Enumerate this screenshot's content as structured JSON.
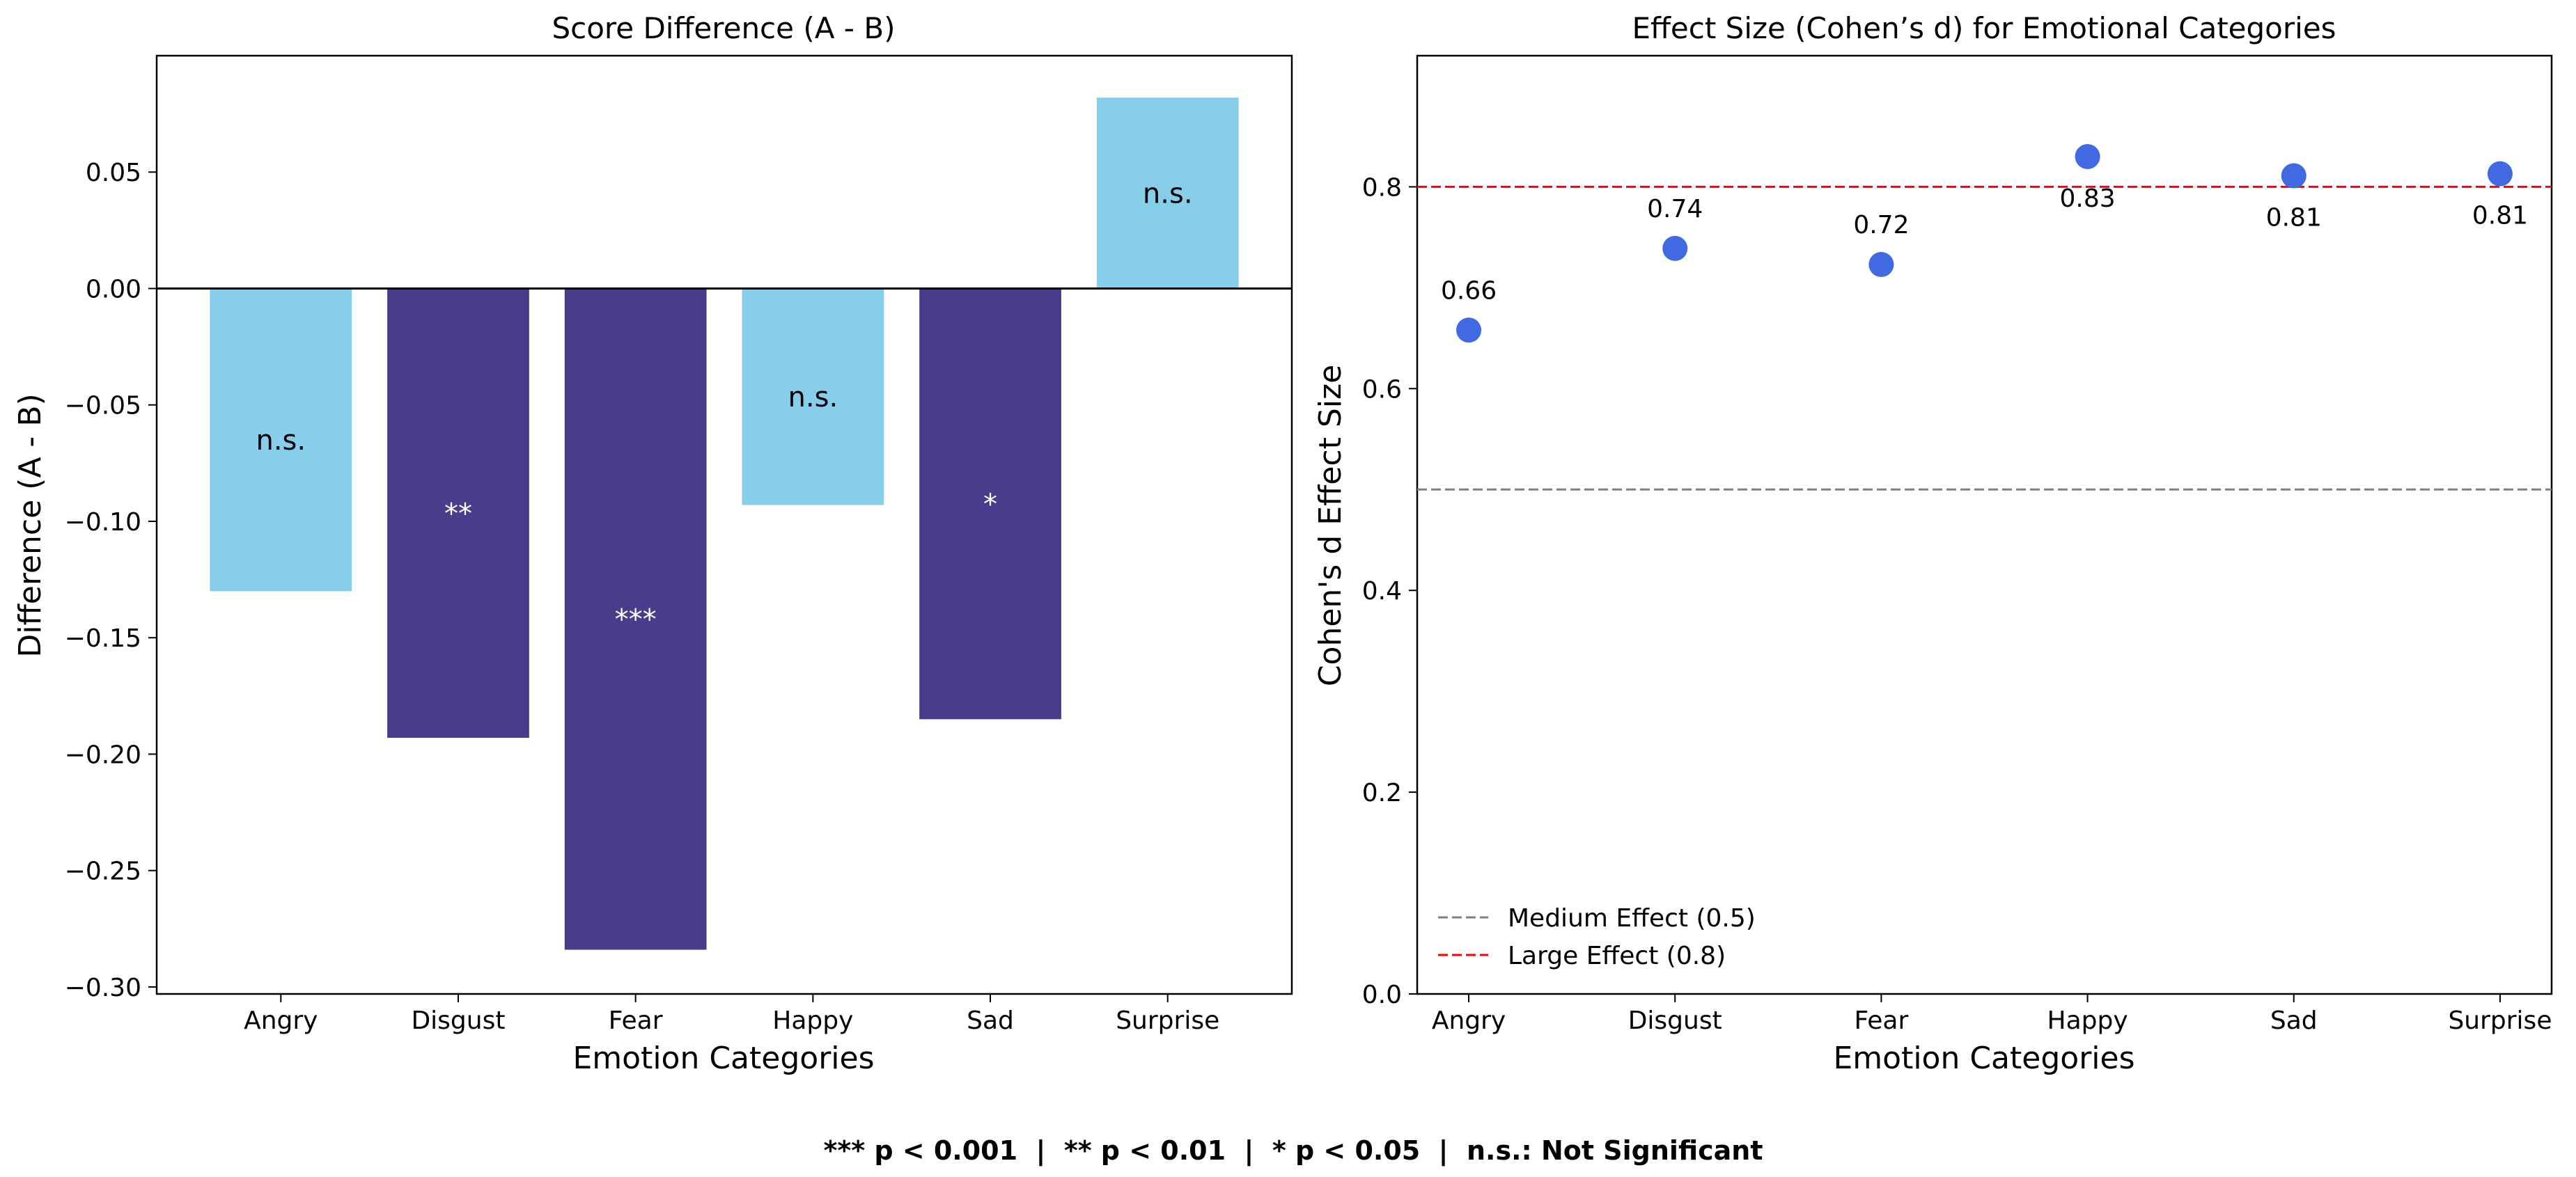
{
  "chart_data": [
    {
      "type": "bar",
      "title": "Score Difference (A - B)",
      "xlabel": "Emotion Categories",
      "ylabel": "Difference (A - B)",
      "categories": [
        "Angry",
        "Disgust",
        "Fear",
        "Happy",
        "Sad",
        "Surprise"
      ],
      "values": [
        -0.13,
        -0.193,
        -0.284,
        -0.093,
        -0.185,
        0.082
      ],
      "significance": [
        "n.s.",
        "**",
        "***",
        "n.s.",
        "*",
        "n.s."
      ],
      "ylim": [
        -0.303,
        0.1
      ],
      "yticks": [
        -0.3,
        -0.25,
        -0.2,
        -0.15,
        -0.1,
        -0.05,
        0.0,
        0.05
      ],
      "ytick_labels": [
        "−0.30",
        "−0.25",
        "−0.20",
        "−0.15",
        "−0.10",
        "−0.05",
        "0.00",
        "0.05"
      ],
      "colors": {
        "significant": "#483D8B",
        "not_significant": "#87CEEB",
        "zero_line": "#000000"
      }
    },
    {
      "type": "scatter",
      "title": "Effect Size (Cohen’s d) for Emotional Categories",
      "xlabel": "Emotion Categories",
      "ylabel": "Cohen's d Effect Size",
      "categories": [
        "Angry",
        "Disgust",
        "Fear",
        "Happy",
        "Sad",
        "Surprise"
      ],
      "values": [
        0.658,
        0.739,
        0.723,
        0.83,
        0.811,
        0.813
      ],
      "value_labels": [
        "0.66",
        "0.74",
        "0.72",
        "0.83",
        "0.81",
        "0.81"
      ],
      "label_position": [
        "above",
        "above",
        "above",
        "below",
        "below",
        "below"
      ],
      "ylim": [
        0,
        0.93
      ],
      "yticks": [
        0.0,
        0.2,
        0.4,
        0.6,
        0.8
      ],
      "ytick_labels": [
        "0.0",
        "0.2",
        "0.4",
        "0.6",
        "0.8"
      ],
      "reference_lines": [
        {
          "name": "Medium Effect (0.5)",
          "y": 0.5,
          "color": "#808080"
        },
        {
          "name": "Large Effect (0.8)",
          "y": 0.8,
          "color": "#FF0000"
        }
      ],
      "legend_position": "lower-left",
      "colors": {
        "points": "#4169E1"
      }
    }
  ],
  "footnote": "*** p < 0.001  |  ** p < 0.01  |  * p < 0.05  |  n.s.: Not Significant"
}
